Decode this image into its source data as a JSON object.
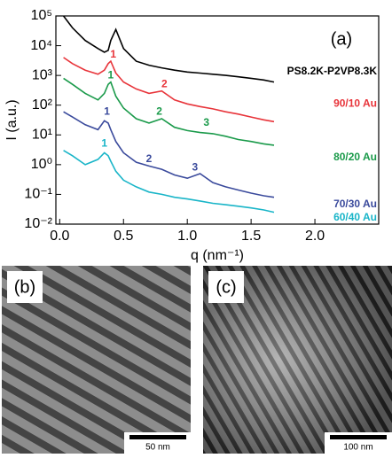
{
  "chart_data": {
    "type": "line",
    "title": "(a)",
    "xlabel": "q (nm⁻¹)",
    "ylabel": "I (a.u.)",
    "log_y": true,
    "x": [
      0.03,
      0.1,
      0.2,
      0.3,
      0.35,
      0.38,
      0.4,
      0.44,
      0.5,
      0.6,
      0.7,
      0.8,
      0.9,
      1.0,
      1.1,
      1.2,
      1.3,
      1.4,
      1.5,
      1.6,
      1.68
    ],
    "series": [
      {
        "name": "PS8.2K-P2VP8.3K",
        "color": "#000000",
        "values": [
          100000,
          40000,
          15000,
          8000,
          6000,
          7000,
          15000,
          35000,
          8000,
          3000,
          2200,
          1800,
          1500,
          1300,
          1200,
          1100,
          1000,
          900,
          800,
          700,
          600
        ]
      },
      {
        "name": "90/10 Au",
        "color": "#e8343a",
        "values": [
          4000,
          2500,
          1500,
          1100,
          1500,
          2500,
          3000,
          1200,
          600,
          350,
          250,
          300,
          150,
          110,
          90,
          75,
          60,
          50,
          40,
          32,
          28
        ]
      },
      {
        "name": "80/20 Au",
        "color": "#1a9a4a",
        "values": [
          800,
          500,
          250,
          150,
          250,
          500,
          600,
          200,
          80,
          35,
          25,
          35,
          18,
          14,
          12,
          11,
          9,
          7,
          6,
          5,
          4.5
        ]
      },
      {
        "name": "70/30 Au",
        "color": "#3a4a9c",
        "values": [
          60,
          40,
          22,
          15,
          30,
          25,
          15,
          6,
          2.5,
          1.2,
          0.9,
          0.7,
          0.45,
          0.35,
          0.5,
          0.25,
          0.18,
          0.14,
          0.11,
          0.09,
          0.08
        ]
      },
      {
        "name": "60/40 Au",
        "color": "#19b5c8",
        "values": [
          3,
          2,
          1,
          1.5,
          2.5,
          2,
          1.3,
          0.6,
          0.3,
          0.18,
          0.12,
          0.1,
          0.08,
          0.07,
          0.06,
          0.05,
          0.045,
          0.04,
          0.035,
          0.03,
          0.025
        ]
      }
    ],
    "annotations": [
      {
        "text": "1",
        "series": 1,
        "x": 0.42,
        "y": 5000
      },
      {
        "text": "2",
        "series": 1,
        "x": 0.82,
        "y": 500
      },
      {
        "text": "1",
        "series": 2,
        "x": 0.4,
        "y": 1000
      },
      {
        "text": "2",
        "series": 2,
        "x": 0.78,
        "y": 60
      },
      {
        "text": "3",
        "series": 2,
        "x": 1.15,
        "y": 25
      },
      {
        "text": "1",
        "series": 3,
        "x": 0.37,
        "y": 60
      },
      {
        "text": "2",
        "series": 3,
        "x": 0.7,
        "y": 1.5
      },
      {
        "text": "3",
        "series": 3,
        "x": 1.06,
        "y": 0.8
      },
      {
        "text": "1",
        "series": 4,
        "x": 0.35,
        "y": 5
      }
    ],
    "xlim": [
      -0.03,
      2.5
    ],
    "xticks": [
      {
        "value": 0,
        "label": "0.0"
      },
      0.5,
      {
        "value": 1,
        "label": "1.0"
      },
      1.5,
      {
        "value": 2,
        "label": "2.0"
      }
    ],
    "ylim": [
      0.01,
      100000
    ],
    "yticks": [
      {
        "value": 0.01,
        "label": "10⁻²"
      },
      {
        "value": 0.1,
        "label": "10⁻¹"
      },
      {
        "value": 1,
        "label": "10⁰"
      },
      {
        "value": 10,
        "label": "10¹"
      },
      {
        "value": 100,
        "label": "10²"
      },
      {
        "value": 1000,
        "label": "10³"
      },
      {
        "value": 10000,
        "label": "10⁴"
      },
      {
        "value": 100000,
        "label": "10⁵"
      }
    ]
  },
  "panels": [
    {
      "label": "(b)",
      "scale_bar": "50 nm"
    },
    {
      "label": "(c)",
      "scale_bar": "100 nm"
    }
  ]
}
